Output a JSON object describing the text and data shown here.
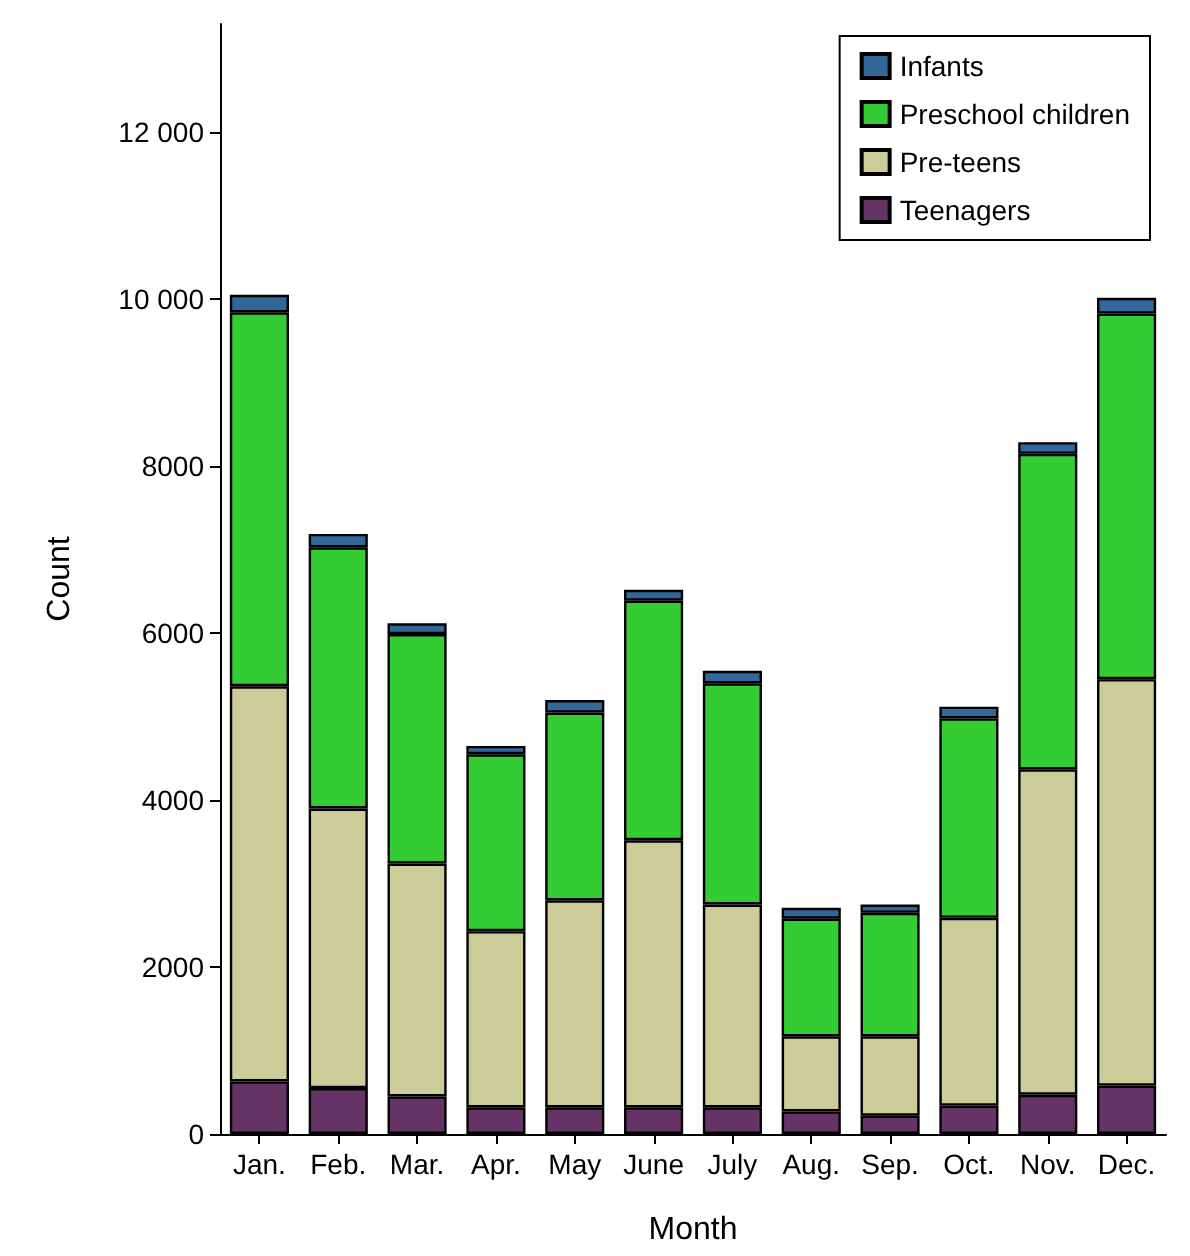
{
  "chart_data": {
    "type": "bar",
    "stacked": true,
    "xlabel": "Month",
    "ylabel": "Count",
    "categories": [
      "Jan.",
      "Feb.",
      "Mar.",
      "Apr.",
      "May",
      "June",
      "July",
      "Aug.",
      "Sep.",
      "Oct.",
      "Nov.",
      "Dec."
    ],
    "series": [
      {
        "name": "Teenagers",
        "color": "#663366",
        "values": [
          630,
          550,
          450,
          320,
          320,
          320,
          320,
          270,
          220,
          340,
          470,
          580
        ]
      },
      {
        "name": "Pre-teens",
        "color": "#cccc99",
        "values": [
          4735,
          3350,
          2790,
          2110,
          2480,
          3200,
          2430,
          900,
          950,
          2250,
          3900,
          4870
        ]
      },
      {
        "name": "Preschool children",
        "color": "#33cc33",
        "values": [
          4480,
          3130,
          2750,
          2120,
          2250,
          2870,
          2650,
          1410,
          1480,
          2390,
          3780,
          4380
        ]
      },
      {
        "name": "Infants",
        "color": "#336699",
        "values": [
          210,
          160,
          130,
          100,
          150,
          130,
          150,
          130,
          100,
          140,
          140,
          190
        ]
      }
    ],
    "ylim": [
      0,
      13300
    ],
    "yticks": [
      0,
      2000,
      4000,
      6000,
      8000,
      {
        "value": 10000,
        "label": "10 000"
      },
      {
        "value": 12000,
        "label": "12 000"
      }
    ],
    "grid": false,
    "legend": "top right"
  }
}
